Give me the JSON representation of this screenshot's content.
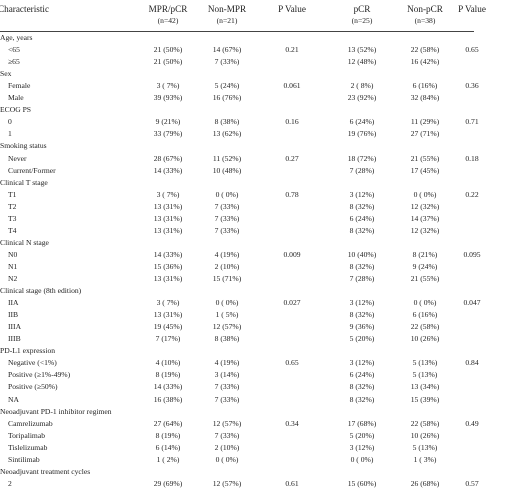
{
  "table": {
    "header": {
      "label": "Characteristic",
      "columns": [
        {
          "label": "MPR/pCR",
          "n": "(n=42)"
        },
        {
          "label": "Non-MPR",
          "n": "(n=21)"
        },
        {
          "label": "P Value"
        },
        {
          "label": "pCR",
          "n": "(n=25)"
        },
        {
          "label": "Non-pCR",
          "n": "(n=38)"
        },
        {
          "label": "P Value"
        }
      ]
    },
    "groups": [
      {
        "title": "Age, years",
        "p_mpr": "0.21",
        "p_pcr": "0.65",
        "rows": [
          {
            "label": "<65",
            "cells": [
              "21 (50%)",
              "14 (67%)",
              "13 (52%)",
              "22 (58%)"
            ]
          },
          {
            "label": "≥65",
            "cells": [
              "21 (50%)",
              "7 (33%)",
              "12 (48%)",
              "16 (42%)"
            ]
          }
        ]
      },
      {
        "title": "Sex",
        "p_mpr": "0.061",
        "p_pcr": "0.36",
        "rows": [
          {
            "label": "Female",
            "cells": [
              "3 ( 7%)",
              "5 (24%)",
              "2 ( 8%)",
              "6 (16%)"
            ]
          },
          {
            "label": "Male",
            "cells": [
              "39 (93%)",
              "16 (76%)",
              "23 (92%)",
              "32 (84%)"
            ]
          }
        ]
      },
      {
        "title": "ECOG PS",
        "p_mpr": "0.16",
        "p_pcr": "0.71",
        "rows": [
          {
            "label": "0",
            "cells": [
              "9 (21%)",
              "8 (38%)",
              "6 (24%)",
              "11 (29%)"
            ]
          },
          {
            "label": "1",
            "cells": [
              "33 (79%)",
              "13 (62%)",
              "19 (76%)",
              "27 (71%)"
            ]
          }
        ]
      },
      {
        "title": "Smoking status",
        "p_mpr": "0.27",
        "p_pcr": "0.18",
        "rows": [
          {
            "label": "Never",
            "cells": [
              "28 (67%)",
              "11 (52%)",
              "18 (72%)",
              "21 (55%)"
            ]
          },
          {
            "label": "Current/Former",
            "cells": [
              "14 (33%)",
              "10 (48%)",
              "7 (28%)",
              "17 (45%)"
            ]
          }
        ]
      },
      {
        "title": "Clinical T stage",
        "p_mpr": "0.78",
        "p_pcr": "0.22",
        "rows": [
          {
            "label": "T1",
            "cells": [
              "3 ( 7%)",
              "0 ( 0%)",
              "3 (12%)",
              "0 ( 0%)"
            ]
          },
          {
            "label": "T2",
            "cells": [
              "13 (31%)",
              "7 (33%)",
              "8 (32%)",
              "12 (32%)"
            ]
          },
          {
            "label": "T3",
            "cells": [
              "13 (31%)",
              "7 (33%)",
              "6 (24%)",
              "14 (37%)"
            ]
          },
          {
            "label": "T4",
            "cells": [
              "13 (31%)",
              "7 (33%)",
              "8 (32%)",
              "12 (32%)"
            ]
          }
        ]
      },
      {
        "title": "Clinical N stage",
        "p_mpr": "0.009",
        "p_pcr": "0.095",
        "rows": [
          {
            "label": "N0",
            "cells": [
              "14 (33%)",
              "4 (19%)",
              "10 (40%)",
              "8 (21%)"
            ]
          },
          {
            "label": "N1",
            "cells": [
              "15 (36%)",
              "2 (10%)",
              "8 (32%)",
              "9 (24%)"
            ]
          },
          {
            "label": "N2",
            "cells": [
              "13 (31%)",
              "15 (71%)",
              "7 (28%)",
              "21 (55%)"
            ]
          }
        ]
      },
      {
        "title": "Clinical stage (8th edition)",
        "p_mpr": "0.027",
        "p_pcr": "0.047",
        "rows": [
          {
            "label": "IIA",
            "cells": [
              "3 ( 7%)",
              "0 ( 0%)",
              "3 (12%)",
              "0 ( 0%)"
            ]
          },
          {
            "label": "IIB",
            "cells": [
              "13 (31%)",
              "1 ( 5%)",
              "8 (32%)",
              "6 (16%)"
            ]
          },
          {
            "label": "IIIA",
            "cells": [
              "19 (45%)",
              "12 (57%)",
              "9 (36%)",
              "22 (58%)"
            ]
          },
          {
            "label": "IIIB",
            "cells": [
              "7 (17%)",
              "8 (38%)",
              "5 (20%)",
              "10 (26%)"
            ]
          }
        ]
      },
      {
        "title": "PD-L1 expression",
        "p_mpr": "0.65",
        "p_pcr": "0.84",
        "rows": [
          {
            "label": "Negative (<1%)",
            "cells": [
              "4 (10%)",
              "4 (19%)",
              "3 (12%)",
              "5 (13%)"
            ]
          },
          {
            "label": "Positive (≥1%-49%)",
            "cells": [
              "8 (19%)",
              "3 (14%)",
              "6 (24%)",
              "5 (13%)"
            ]
          },
          {
            "label": "Positive (≥50%)",
            "cells": [
              "14 (33%)",
              "7 (33%)",
              "8 (32%)",
              "13 (34%)"
            ]
          },
          {
            "label": "NA",
            "cells": [
              "16 (38%)",
              "7 (33%)",
              "8 (32%)",
              "15 (39%)"
            ]
          }
        ]
      },
      {
        "title": "Neoadjuvant PD-1 inhibitor regimen",
        "p_mpr": "0.34",
        "p_pcr": "0.49",
        "rows": [
          {
            "label": "Camrelizumab",
            "cells": [
              "27 (64%)",
              "12 (57%)",
              "17 (68%)",
              "22 (58%)"
            ]
          },
          {
            "label": "Toripalimab",
            "cells": [
              "8 (19%)",
              "7 (33%)",
              "5 (20%)",
              "10 (26%)"
            ]
          },
          {
            "label": "Tislelizumab",
            "cells": [
              "6 (14%)",
              "2 (10%)",
              "3 (12%)",
              "5 (13%)"
            ]
          },
          {
            "label": "Sintilimab",
            "cells": [
              "1 ( 2%)",
              "0 ( 0%)",
              "0 ( 0%)",
              "1 ( 3%)"
            ]
          }
        ]
      },
      {
        "title": "Neoadjuvant treatment cycles",
        "p_mpr": "0.61",
        "p_pcr": "0.57",
        "rows": [
          {
            "label": "2",
            "cells": [
              "29 (69%)",
              "12 (57%)",
              "15 (60%)",
              "26 (68%)"
            ]
          }
        ]
      }
    ]
  }
}
